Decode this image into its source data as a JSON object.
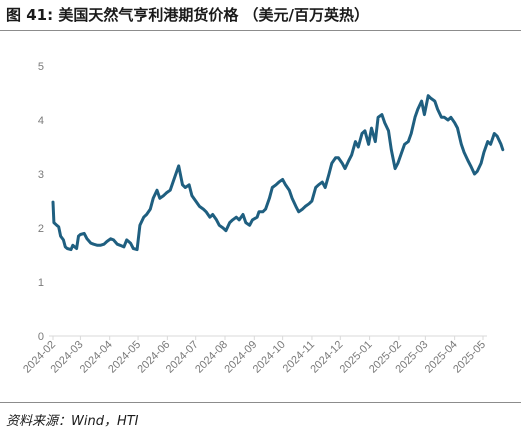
{
  "header": {
    "title": "图 41:  美国天然气亨利港期货价格 （美元/百万英热）"
  },
  "footer": {
    "source": "资料来源：Wind，HTI"
  },
  "colors": {
    "line": "#1f5f80",
    "axis": "#d9d9d9",
    "tick_text": "#7a7a7a"
  },
  "chart_data": {
    "type": "line",
    "title": "美国天然气亨利港期货价格 （美元/百万英热）",
    "xlabel": "",
    "ylabel": "",
    "ylim": [
      0,
      5
    ],
    "yticks": [
      0,
      1,
      2,
      3,
      4,
      5
    ],
    "x_tick_labels": [
      "2024-02",
      "2024-03",
      "2024-04",
      "2024-05",
      "2024-06",
      "2024-07",
      "2024-08",
      "2024-09",
      "2024-10",
      "2024-11",
      "2024-12",
      "2025-01",
      "2025-02",
      "2025-03",
      "2025-04",
      "2025-05"
    ],
    "grid": false,
    "legend": "none",
    "series": [
      {
        "points": [
          [
            "2024-02-01",
            2.48
          ],
          [
            "2024-02-02",
            2.1
          ],
          [
            "2024-02-05",
            2.05
          ],
          [
            "2024-02-07",
            2.02
          ],
          [
            "2024-02-09",
            1.85
          ],
          [
            "2024-02-12",
            1.78
          ],
          [
            "2024-02-14",
            1.65
          ],
          [
            "2024-02-16",
            1.62
          ],
          [
            "2024-02-20",
            1.6
          ],
          [
            "2024-02-22",
            1.68
          ],
          [
            "2024-02-26",
            1.62
          ],
          [
            "2024-02-28",
            1.85
          ],
          [
            "2024-03-01",
            1.88
          ],
          [
            "2024-03-05",
            1.9
          ],
          [
            "2024-03-08",
            1.8
          ],
          [
            "2024-03-12",
            1.72
          ],
          [
            "2024-03-15",
            1.7
          ],
          [
            "2024-03-19",
            1.68
          ],
          [
            "2024-03-22",
            1.68
          ],
          [
            "2024-03-26",
            1.7
          ],
          [
            "2024-03-29",
            1.75
          ],
          [
            "2024-04-02",
            1.8
          ],
          [
            "2024-04-05",
            1.78
          ],
          [
            "2024-04-09",
            1.7
          ],
          [
            "2024-04-12",
            1.68
          ],
          [
            "2024-04-16",
            1.65
          ],
          [
            "2024-04-19",
            1.78
          ],
          [
            "2024-04-23",
            1.72
          ],
          [
            "2024-04-26",
            1.62
          ],
          [
            "2024-04-30",
            1.6
          ],
          [
            "2024-05-03",
            2.05
          ],
          [
            "2024-05-07",
            2.2
          ],
          [
            "2024-05-10",
            2.25
          ],
          [
            "2024-05-14",
            2.35
          ],
          [
            "2024-05-17",
            2.55
          ],
          [
            "2024-05-21",
            2.7
          ],
          [
            "2024-05-24",
            2.55
          ],
          [
            "2024-05-28",
            2.6
          ],
          [
            "2024-05-31",
            2.65
          ],
          [
            "2024-06-04",
            2.7
          ],
          [
            "2024-06-07",
            2.85
          ],
          [
            "2024-06-11",
            3.05
          ],
          [
            "2024-06-13",
            3.15
          ],
          [
            "2024-06-17",
            2.8
          ],
          [
            "2024-06-20",
            2.75
          ],
          [
            "2024-06-24",
            2.8
          ],
          [
            "2024-06-27",
            2.6
          ],
          [
            "2024-07-01",
            2.5
          ],
          [
            "2024-07-05",
            2.4
          ],
          [
            "2024-07-09",
            2.35
          ],
          [
            "2024-07-12",
            2.3
          ],
          [
            "2024-07-16",
            2.2
          ],
          [
            "2024-07-19",
            2.25
          ],
          [
            "2024-07-23",
            2.15
          ],
          [
            "2024-07-26",
            2.05
          ],
          [
            "2024-07-30",
            2.0
          ],
          [
            "2024-08-02",
            1.95
          ],
          [
            "2024-08-06",
            2.1
          ],
          [
            "2024-08-09",
            2.15
          ],
          [
            "2024-08-13",
            2.2
          ],
          [
            "2024-08-16",
            2.15
          ],
          [
            "2024-08-20",
            2.25
          ],
          [
            "2024-08-23",
            2.1
          ],
          [
            "2024-08-27",
            2.05
          ],
          [
            "2024-08-30",
            2.15
          ],
          [
            "2024-09-04",
            2.2
          ],
          [
            "2024-09-06",
            2.3
          ],
          [
            "2024-09-10",
            2.3
          ],
          [
            "2024-09-13",
            2.35
          ],
          [
            "2024-09-17",
            2.55
          ],
          [
            "2024-09-20",
            2.75
          ],
          [
            "2024-09-24",
            2.8
          ],
          [
            "2024-09-27",
            2.85
          ],
          [
            "2024-10-01",
            2.9
          ],
          [
            "2024-10-04",
            2.8
          ],
          [
            "2024-10-08",
            2.7
          ],
          [
            "2024-10-11",
            2.55
          ],
          [
            "2024-10-15",
            2.4
          ],
          [
            "2024-10-18",
            2.3
          ],
          [
            "2024-10-22",
            2.35
          ],
          [
            "2024-10-25",
            2.4
          ],
          [
            "2024-10-29",
            2.45
          ],
          [
            "2024-11-01",
            2.5
          ],
          [
            "2024-11-05",
            2.75
          ],
          [
            "2024-11-08",
            2.8
          ],
          [
            "2024-11-12",
            2.85
          ],
          [
            "2024-11-15",
            2.75
          ],
          [
            "2024-11-19",
            3.0
          ],
          [
            "2024-11-22",
            3.2
          ],
          [
            "2024-11-26",
            3.3
          ],
          [
            "2024-11-29",
            3.3
          ],
          [
            "2024-12-03",
            3.2
          ],
          [
            "2024-12-06",
            3.1
          ],
          [
            "2024-12-10",
            3.25
          ],
          [
            "2024-12-13",
            3.35
          ],
          [
            "2024-12-17",
            3.6
          ],
          [
            "2024-12-20",
            3.5
          ],
          [
            "2024-12-24",
            3.75
          ],
          [
            "2024-12-27",
            3.8
          ],
          [
            "2024-12-31",
            3.55
          ],
          [
            "2025-01-03",
            3.85
          ],
          [
            "2025-01-07",
            3.6
          ],
          [
            "2025-01-10",
            4.05
          ],
          [
            "2025-01-14",
            4.1
          ],
          [
            "2025-01-17",
            3.95
          ],
          [
            "2025-01-21",
            3.8
          ],
          [
            "2025-01-24",
            3.45
          ],
          [
            "2025-01-28",
            3.1
          ],
          [
            "2025-01-31",
            3.2
          ],
          [
            "2025-02-04",
            3.4
          ],
          [
            "2025-02-07",
            3.55
          ],
          [
            "2025-02-11",
            3.6
          ],
          [
            "2025-02-14",
            3.75
          ],
          [
            "2025-02-18",
            4.05
          ],
          [
            "2025-02-21",
            4.2
          ],
          [
            "2025-02-25",
            4.35
          ],
          [
            "2025-02-28",
            4.1
          ],
          [
            "2025-03-04",
            4.45
          ],
          [
            "2025-03-07",
            4.4
          ],
          [
            "2025-03-11",
            4.35
          ],
          [
            "2025-03-14",
            4.2
          ],
          [
            "2025-03-18",
            4.05
          ],
          [
            "2025-03-21",
            4.05
          ],
          [
            "2025-03-25",
            4.0
          ],
          [
            "2025-03-28",
            4.05
          ],
          [
            "2025-04-01",
            3.95
          ],
          [
            "2025-04-04",
            3.85
          ],
          [
            "2025-04-08",
            3.55
          ],
          [
            "2025-04-11",
            3.4
          ],
          [
            "2025-04-15",
            3.25
          ],
          [
            "2025-04-18",
            3.15
          ],
          [
            "2025-04-22",
            3.0
          ],
          [
            "2025-04-25",
            3.05
          ],
          [
            "2025-04-29",
            3.2
          ],
          [
            "2025-05-02",
            3.4
          ],
          [
            "2025-05-06",
            3.6
          ],
          [
            "2025-05-09",
            3.55
          ],
          [
            "2025-05-13",
            3.75
          ],
          [
            "2025-05-16",
            3.7
          ],
          [
            "2025-05-20",
            3.55
          ],
          [
            "2025-05-22",
            3.45
          ]
        ]
      }
    ]
  }
}
